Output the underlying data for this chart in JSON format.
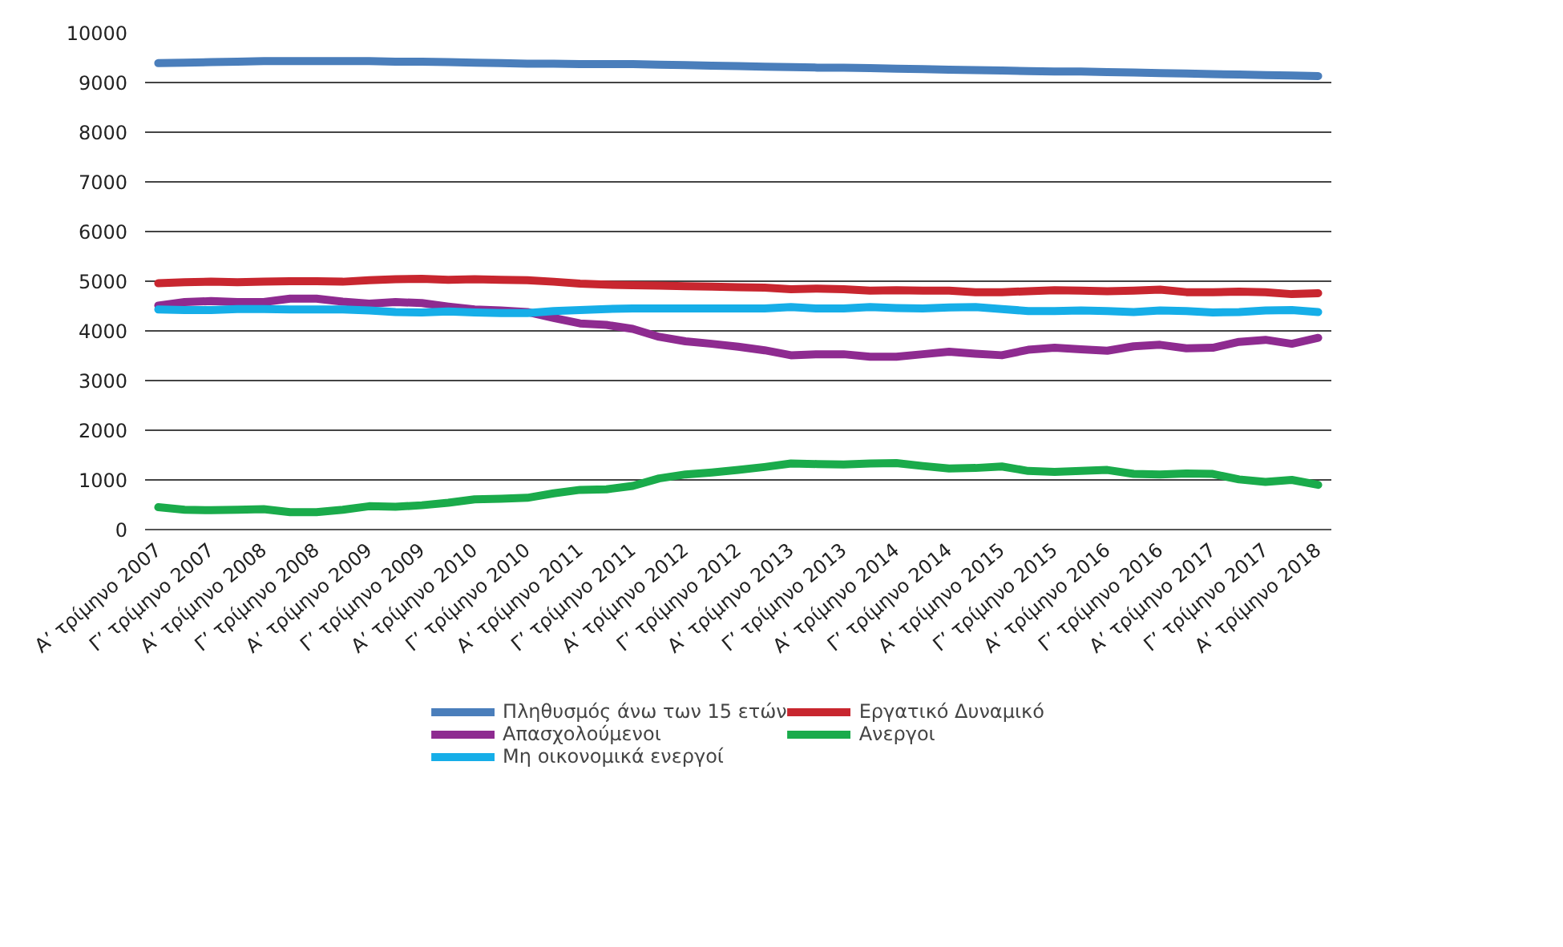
{
  "chart_data": {
    "type": "line",
    "categories": [
      "Α’ τρίμηνο 2007",
      null,
      "Γ’ τρίμηνο 2007",
      null,
      "Α’ τρίμηνο 2008",
      null,
      "Γ’ τρίμηνο 2008",
      null,
      "Α’ τρίμηνο 2009",
      null,
      "Γ’ τρίμηνο 2009",
      null,
      "Α’ τρίμηνο 2010",
      null,
      "Γ’ τρίμηνο 2010",
      null,
      "Α’ τρίμηνο 2011",
      null,
      "Γ’ τρίμηνο 2011",
      null,
      "Α’ τρίμηνο 2012",
      null,
      "Γ’ τρίμηνο 2012",
      null,
      "Α’ τρίμηνο 2013",
      null,
      "Γ’ τρίμηνο 2013",
      null,
      "Α’ τρίμηνο 2014",
      null,
      "Γ’ τρίμηνο 2014",
      null,
      "Α’ τρίμηνο 2015",
      null,
      "Γ’ τρίμηνο 2015",
      null,
      "Α’ τρίμηνο 2016",
      null,
      "Γ’ τρίμηνο 2016",
      null,
      "Α’ τρίμηνο 2017",
      null,
      "Γ’ τρίμηνο 2017",
      null,
      "Α’ τρίμηνο 2018"
    ],
    "series": [
      {
        "name": "Πληθυσμός άνω των 15 ετών",
        "color": "#4a7ebb",
        "values": [
          9390,
          9400,
          9410,
          9420,
          9430,
          9430,
          9430,
          9430,
          9430,
          9420,
          9420,
          9410,
          9400,
          9390,
          9380,
          9380,
          9370,
          9370,
          9370,
          9360,
          9350,
          9340,
          9330,
          9320,
          9310,
          9300,
          9300,
          9290,
          9280,
          9270,
          9260,
          9250,
          9240,
          9230,
          9220,
          9220,
          9210,
          9200,
          9190,
          9180,
          9170,
          9160,
          9150,
          9140,
          9130
        ]
      },
      {
        "name": "Εργατικό Δυναμικό",
        "color": "#c8262f",
        "values": [
          4960,
          4980,
          4990,
          4980,
          4990,
          5000,
          5000,
          4990,
          5020,
          5040,
          5050,
          5030,
          5040,
          5030,
          5020,
          4990,
          4950,
          4930,
          4920,
          4910,
          4900,
          4890,
          4880,
          4870,
          4840,
          4850,
          4840,
          4810,
          4820,
          4810,
          4810,
          4780,
          4780,
          4800,
          4820,
          4810,
          4800,
          4810,
          4830,
          4780,
          4780,
          4790,
          4780,
          4740,
          4760
        ]
      },
      {
        "name": "Απασχολούμενοι",
        "color": "#8e2b90",
        "values": [
          4510,
          4580,
          4600,
          4580,
          4580,
          4650,
          4650,
          4590,
          4550,
          4580,
          4560,
          4490,
          4430,
          4410,
          4380,
          4260,
          4150,
          4120,
          4040,
          3880,
          3790,
          3740,
          3680,
          3610,
          3510,
          3530,
          3530,
          3480,
          3480,
          3530,
          3580,
          3540,
          3510,
          3620,
          3660,
          3630,
          3600,
          3690,
          3720,
          3650,
          3660,
          3780,
          3820,
          3740,
          3860
        ]
      },
      {
        "name": "Ανεργοι",
        "color": "#1aab4b",
        "values": [
          450,
          400,
          390,
          400,
          410,
          350,
          350,
          400,
          470,
          460,
          490,
          540,
          610,
          620,
          640,
          730,
          800,
          810,
          880,
          1030,
          1110,
          1150,
          1200,
          1260,
          1330,
          1320,
          1310,
          1330,
          1340,
          1280,
          1230,
          1240,
          1270,
          1180,
          1160,
          1180,
          1200,
          1120,
          1110,
          1130,
          1120,
          1010,
          960,
          1000,
          900
        ]
      },
      {
        "name": "Μη οικονομικά ενεργοί",
        "color": "#16aee8",
        "values": [
          4430,
          4420,
          4420,
          4440,
          4440,
          4430,
          4430,
          4430,
          4410,
          4380,
          4370,
          4390,
          4370,
          4360,
          4360,
          4400,
          4420,
          4440,
          4450,
          4450,
          4450,
          4450,
          4450,
          4450,
          4480,
          4450,
          4450,
          4480,
          4460,
          4450,
          4470,
          4480,
          4440,
          4400,
          4400,
          4410,
          4400,
          4380,
          4410,
          4400,
          4370,
          4380,
          4410,
          4420,
          4380
        ]
      }
    ],
    "ylim": [
      0,
      10000
    ],
    "yticks": [
      0,
      1000,
      2000,
      3000,
      4000,
      5000,
      6000,
      7000,
      8000,
      9000,
      10000
    ],
    "grid": "y",
    "legend": "bottom",
    "marker": "none",
    "line_style": "solid"
  }
}
